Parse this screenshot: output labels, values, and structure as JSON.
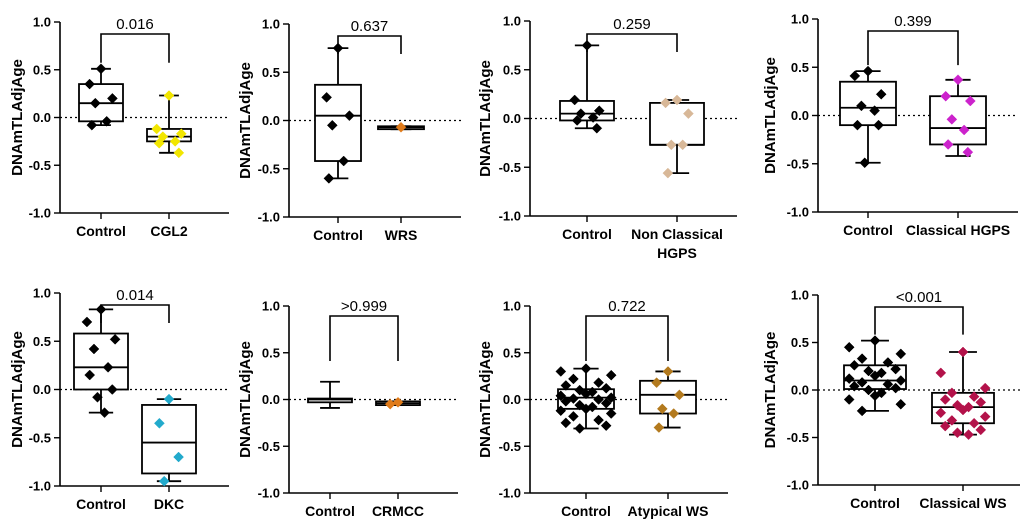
{
  "chart_data": [
    {
      "type": "boxplot",
      "ylabel": "DNAmTLAdjAge",
      "ylim": [
        -1.0,
        1.0
      ],
      "yticks": [
        "1.0",
        "0.5",
        "0.0",
        "-0.5",
        "-1.0"
      ],
      "p_value": "0.016",
      "groups": [
        {
          "label": "Control",
          "color": "#000000",
          "q1": -0.04,
          "median": 0.15,
          "q3": 0.35,
          "whisker_low": -0.08,
          "whisker_high": 0.51,
          "points": [
            0.51,
            0.35,
            0.2,
            0.15,
            -0.04,
            -0.08
          ]
        },
        {
          "label": "CGL2",
          "color": "#f2e600",
          "q1": -0.25,
          "median": -0.2,
          "q3": -0.12,
          "whisker_low": -0.37,
          "whisker_high": 0.23,
          "points": [
            0.23,
            -0.12,
            -0.17,
            -0.2,
            -0.25,
            -0.27,
            -0.37
          ]
        }
      ]
    },
    {
      "type": "boxplot",
      "ylabel": "DNAmTLAdjAge",
      "ylim": [
        -1.0,
        1.0
      ],
      "yticks": [
        "1.0",
        "0.5",
        "0.0",
        "-0.5",
        "-1.0"
      ],
      "p_value": "0.637",
      "groups": [
        {
          "label": "Control",
          "color": "#000000",
          "q1": -0.42,
          "median": 0.05,
          "q3": 0.37,
          "whisker_low": -0.6,
          "whisker_high": 0.75,
          "points": [
            0.75,
            0.24,
            0.05,
            -0.05,
            -0.42,
            -0.6
          ]
        },
        {
          "label": "WRS",
          "color": "#e07b1a",
          "q1": -0.09,
          "median": -0.07,
          "q3": -0.06,
          "whisker_low": -0.09,
          "whisker_high": -0.06,
          "points": [
            -0.07
          ]
        }
      ]
    },
    {
      "type": "boxplot",
      "ylabel": "DNAmTLAdjAge",
      "ylim": [
        -1.0,
        1.0
      ],
      "yticks": [
        "1.0",
        "0.5",
        "0.0",
        "-0.5",
        "-1.0"
      ],
      "p_value": "0.259",
      "groups": [
        {
          "label": "Control",
          "color": "#000000",
          "q1": -0.02,
          "median": 0.05,
          "q3": 0.18,
          "whisker_low": -0.1,
          "whisker_high": 0.75,
          "points": [
            0.75,
            0.19,
            0.08,
            0.05,
            0.01,
            -0.02,
            -0.1
          ]
        },
        {
          "label": "Non Classical\nHGPS",
          "color": "#d8b898",
          "q1": -0.27,
          "median": -0.27,
          "q3": 0.16,
          "whisker_low": -0.56,
          "whisker_high": 0.19,
          "points": [
            0.19,
            0.16,
            0.05,
            -0.27,
            -0.27,
            -0.56
          ]
        }
      ]
    },
    {
      "type": "boxplot",
      "ylabel": "DNAmTLAdjAge",
      "ylim": [
        -1.0,
        1.0
      ],
      "yticks": [
        "1.0",
        "0.5",
        "0.0",
        "-0.5",
        "-1.0"
      ],
      "p_value": "0.399",
      "groups": [
        {
          "label": "Control",
          "color": "#000000",
          "q1": -0.1,
          "median": 0.08,
          "q3": 0.35,
          "whisker_low": -0.49,
          "whisker_high": 0.46,
          "points": [
            0.46,
            0.41,
            0.22,
            0.1,
            0.05,
            -0.1,
            -0.1,
            -0.49
          ]
        },
        {
          "label": "Classical HGPS",
          "color": "#cc22cc",
          "q1": -0.3,
          "median": -0.13,
          "q3": 0.2,
          "whisker_low": -0.42,
          "whisker_high": 0.37,
          "points": [
            0.37,
            0.2,
            0.15,
            -0.04,
            -0.15,
            -0.3,
            -0.38
          ]
        }
      ]
    },
    {
      "type": "boxplot",
      "ylabel": "DNAmTLAdjAge",
      "ylim": [
        -1.0,
        1.0
      ],
      "yticks": [
        "1.0",
        "0.5",
        "0.0",
        "-0.5",
        "-1.0"
      ],
      "p_value": "0.014",
      "groups": [
        {
          "label": "Control",
          "color": "#000000",
          "q1": 0.0,
          "median": 0.23,
          "q3": 0.58,
          "whisker_low": -0.24,
          "whisker_high": 0.83,
          "points": [
            0.83,
            0.7,
            0.52,
            0.42,
            0.23,
            0.15,
            0.0,
            -0.08,
            -0.24
          ]
        },
        {
          "label": "DKC",
          "color": "#22aacc",
          "q1": -0.87,
          "median": -0.55,
          "q3": -0.16,
          "whisker_low": -0.95,
          "whisker_high": -0.1,
          "points": [
            -0.1,
            -0.35,
            -0.7,
            -0.95
          ]
        }
      ]
    },
    {
      "type": "boxplot",
      "ylabel": "DNAmTLAdjAge",
      "ylim": [
        -1.0,
        1.0
      ],
      "yticks": [
        "1.0",
        "0.5",
        "0.0",
        "-0.5",
        "-1.0"
      ],
      "p_value": ">0.999",
      "groups": [
        {
          "label": "Control",
          "color": "#000000",
          "q1": -0.03,
          "median": 0.0,
          "q3": 0.01,
          "whisker_low": -0.09,
          "whisker_high": 0.19,
          "points": []
        },
        {
          "label": "CRMCC",
          "color": "#e07b1a",
          "q1": -0.06,
          "median": -0.04,
          "q3": -0.02,
          "whisker_low": -0.06,
          "whisker_high": -0.02,
          "points": [
            -0.03,
            -0.05
          ]
        }
      ]
    },
    {
      "type": "boxplot",
      "ylabel": "DNAmTLAdjAge",
      "ylim": [
        -1.0,
        1.0
      ],
      "yticks": [
        "1.0",
        "0.5",
        "0.0",
        "-0.5",
        "-1.0"
      ],
      "p_value": "0.722",
      "groups": [
        {
          "label": "Control",
          "color": "#000000",
          "q1": -0.1,
          "median": 0.02,
          "q3": 0.11,
          "whisker_low": -0.31,
          "whisker_high": 0.33,
          "points": [
            0.33,
            0.3,
            0.26,
            0.22,
            0.18,
            0.15,
            0.12,
            0.1,
            0.08,
            0.06,
            0.04,
            0.02,
            0.01,
            0.0,
            -0.02,
            -0.04,
            -0.06,
            -0.08,
            -0.1,
            -0.12,
            -0.15,
            -0.18,
            -0.22,
            -0.25,
            -0.28,
            -0.31
          ]
        },
        {
          "label": "Atypical WS",
          "color": "#b37a1e",
          "q1": -0.15,
          "median": 0.05,
          "q3": 0.2,
          "whisker_low": -0.3,
          "whisker_high": 0.3,
          "points": [
            0.3,
            0.18,
            0.05,
            -0.1,
            -0.15,
            -0.3
          ]
        }
      ]
    },
    {
      "type": "boxplot",
      "ylabel": "DNAmTLAdjAge",
      "ylim": [
        -1.0,
        1.0
      ],
      "yticks": [
        "1.0",
        "0.5",
        "0.0",
        "-0.5",
        "-1.0"
      ],
      "p_value": "<0.001",
      "groups": [
        {
          "label": "Control",
          "color": "#000000",
          "q1": 0.01,
          "median": 0.1,
          "q3": 0.26,
          "whisker_low": -0.22,
          "whisker_high": 0.52,
          "points": [
            0.52,
            0.45,
            0.38,
            0.33,
            0.29,
            0.26,
            0.22,
            0.2,
            0.18,
            0.15,
            0.12,
            0.1,
            0.08,
            0.06,
            0.04,
            0.02,
            0.0,
            -0.03,
            -0.06,
            -0.1,
            -0.15,
            -0.22
          ]
        },
        {
          "label": "Classical WS",
          "color": "#b3124a",
          "q1": -0.35,
          "median": -0.18,
          "q3": -0.03,
          "whisker_low": -0.47,
          "whisker_high": 0.4,
          "points": [
            0.4,
            0.18,
            0.02,
            -0.03,
            -0.07,
            -0.1,
            -0.13,
            -0.16,
            -0.18,
            -0.21,
            -0.24,
            -0.28,
            -0.32,
            -0.35,
            -0.38,
            -0.42,
            -0.45,
            -0.47
          ]
        }
      ]
    }
  ]
}
